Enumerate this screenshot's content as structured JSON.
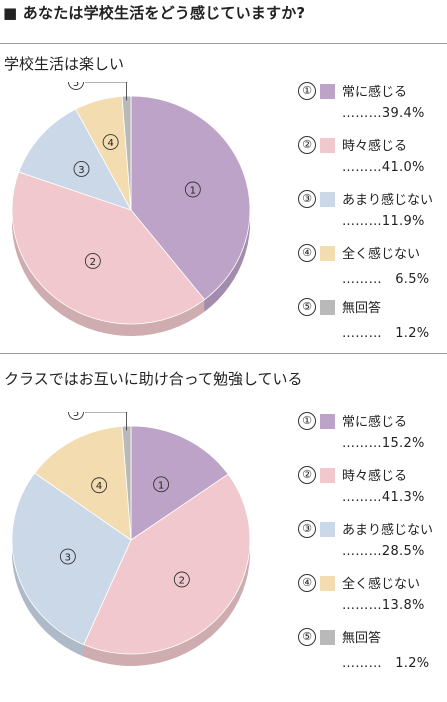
{
  "title": "■ あなたは学校生活をどう感じていますか?",
  "colors": {
    "always": "#bda3c8",
    "sometimes": "#f0c8cd",
    "little": "#cbd8e8",
    "never": "#f3dcb0",
    "none": "#b9b9b9"
  },
  "chart_data": [
    {
      "type": "pie",
      "title": "学校生活は楽しい",
      "slices": [
        {
          "marker": "①",
          "label": "常に感じる",
          "value": 39.4,
          "value_text": "………39.4%",
          "color": "#bda3c8"
        },
        {
          "marker": "②",
          "label": "時々感じる",
          "value": 41.0,
          "value_text": "………41.0%",
          "color": "#f0c8cd"
        },
        {
          "marker": "③",
          "label": "あまり感じない",
          "value": 11.9,
          "value_text": "………11.9%",
          "color": "#cbd8e8"
        },
        {
          "marker": "④",
          "label": "全く感じない",
          "value": 6.5,
          "value_text": "………　6.5%",
          "color": "#f3dcb0"
        },
        {
          "marker": "⑤",
          "label": "無回答",
          "value": 1.2,
          "value_text": "………　1.2%",
          "color": "#b9b9b9"
        }
      ],
      "legend_position": "right"
    },
    {
      "type": "pie",
      "title": "クラスではお互いに助け合って勉強している",
      "slices": [
        {
          "marker": "①",
          "label": "常に感じる",
          "value": 15.2,
          "value_text": "………15.2%",
          "color": "#bda3c8"
        },
        {
          "marker": "②",
          "label": "時々感じる",
          "value": 41.3,
          "value_text": "………41.3%",
          "color": "#f0c8cd"
        },
        {
          "marker": "③",
          "label": "あまり感じない",
          "value": 28.5,
          "value_text": "………28.5%",
          "color": "#cbd8e8"
        },
        {
          "marker": "④",
          "label": "全く感じない",
          "value": 13.8,
          "value_text": "………13.8%",
          "color": "#f3dcb0"
        },
        {
          "marker": "⑤",
          "label": "無回答",
          "value": 1.2,
          "value_text": "………　1.2%",
          "color": "#b9b9b9"
        }
      ],
      "legend_position": "right"
    }
  ]
}
